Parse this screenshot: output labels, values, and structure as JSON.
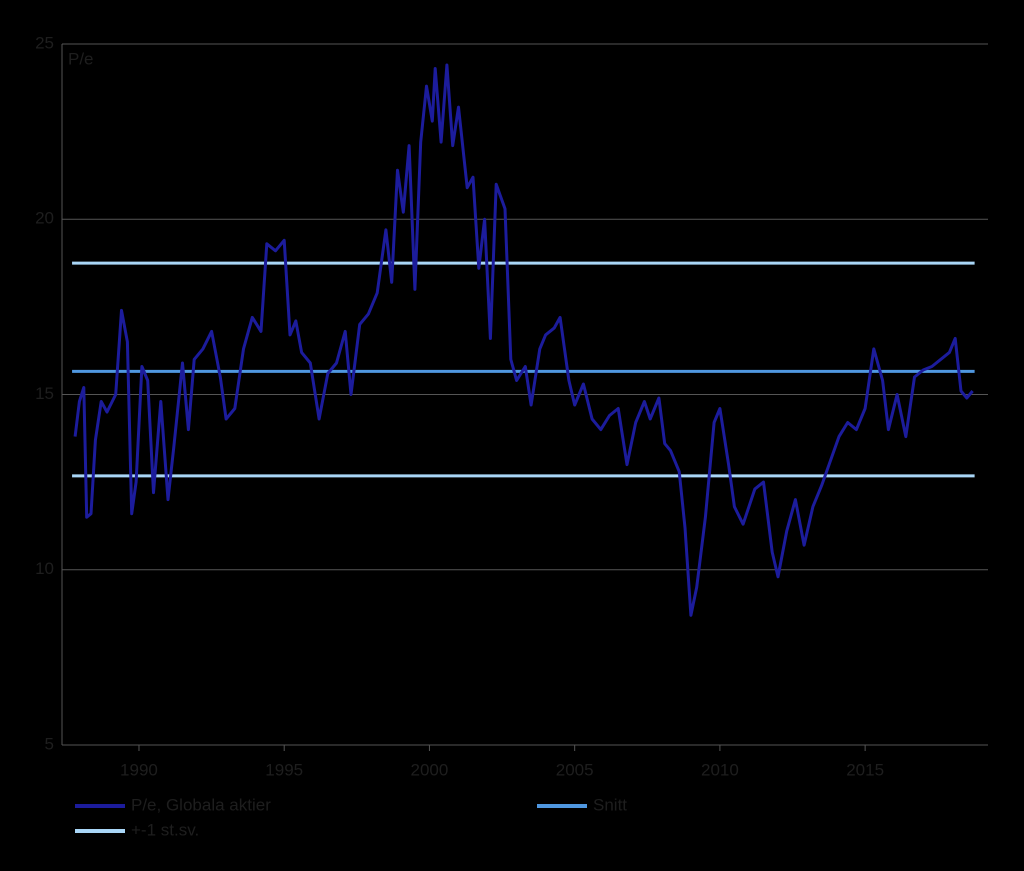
{
  "chart_data": {
    "type": "line",
    "y_label": "P/e",
    "xlim": [
      1987.35,
      2019.23
    ],
    "ylim": [
      5,
      25
    ],
    "yticks": [
      5,
      10,
      15,
      20,
      25
    ],
    "xticks": [
      1990,
      1995,
      2000,
      2005,
      2010,
      2015
    ],
    "grid": true,
    "legend": "bottom",
    "series": [
      {
        "name": "P/e, Globala aktier",
        "color": "#1c1c9c",
        "x": [
          1987.8,
          1987.95,
          1988.1,
          1988.2,
          1988.35,
          1988.5,
          1988.7,
          1988.9,
          1989.2,
          1989.4,
          1989.6,
          1989.75,
          1989.9,
          1990.1,
          1990.3,
          1990.5,
          1990.75,
          1991.0,
          1991.2,
          1991.5,
          1991.7,
          1991.9,
          1992.2,
          1992.5,
          1992.8,
          1993.0,
          1993.3,
          1993.6,
          1993.9,
          1994.2,
          1994.4,
          1994.7,
          1995.0,
          1995.2,
          1995.4,
          1995.6,
          1995.9,
          1996.2,
          1996.5,
          1996.8,
          1997.1,
          1997.3,
          1997.6,
          1997.9,
          1998.2,
          1998.5,
          1998.7,
          1998.9,
          1999.1,
          1999.3,
          1999.5,
          1999.7,
          1999.9,
          2000.1,
          2000.2,
          2000.4,
          2000.6,
          2000.8,
          2001.0,
          2001.3,
          2001.5,
          2001.7,
          2001.9,
          2002.1,
          2002.3,
          2002.6,
          2002.8,
          2003.0,
          2003.3,
          2003.5,
          2003.8,
          2004.0,
          2004.3,
          2004.5,
          2004.8,
          2005.0,
          2005.3,
          2005.6,
          2005.9,
          2006.2,
          2006.5,
          2006.8,
          2007.1,
          2007.4,
          2007.6,
          2007.9,
          2008.1,
          2008.3,
          2008.6,
          2008.8,
          2009.0,
          2009.2,
          2009.5,
          2009.8,
          2010.0,
          2010.3,
          2010.5,
          2010.8,
          2011.2,
          2011.5,
          2011.8,
          2012.0,
          2012.3,
          2012.6,
          2012.9,
          2013.2,
          2013.5,
          2013.8,
          2014.1,
          2014.4,
          2014.7,
          2015.0,
          2015.3,
          2015.6,
          2015.8,
          2016.1,
          2016.4,
          2016.7,
          2017.0,
          2017.3,
          2017.6,
          2017.9,
          2018.1,
          2018.3,
          2018.5,
          2018.7
        ],
        "values": [
          13.8,
          14.8,
          15.2,
          11.5,
          11.6,
          13.7,
          14.8,
          14.5,
          15.0,
          17.4,
          16.5,
          11.6,
          12.5,
          15.8,
          15.4,
          12.2,
          14.8,
          12.0,
          13.5,
          15.9,
          14.0,
          16.0,
          16.3,
          16.8,
          15.5,
          14.3,
          14.6,
          16.3,
          17.2,
          16.8,
          19.3,
          19.1,
          19.4,
          16.7,
          17.1,
          16.2,
          15.9,
          14.3,
          15.6,
          15.9,
          16.8,
          15.0,
          17.0,
          17.3,
          17.9,
          19.7,
          18.2,
          21.4,
          20.2,
          22.1,
          18.0,
          22.2,
          23.8,
          22.8,
          24.3,
          22.2,
          24.4,
          22.1,
          23.2,
          20.9,
          21.2,
          18.6,
          20.0,
          16.6,
          21.0,
          20.3,
          16.0,
          15.4,
          15.8,
          14.7,
          16.3,
          16.7,
          16.9,
          17.2,
          15.4,
          14.7,
          15.3,
          14.3,
          14.0,
          14.4,
          14.6,
          13.0,
          14.2,
          14.8,
          14.3,
          14.9,
          13.6,
          13.4,
          12.8,
          11.2,
          8.7,
          9.5,
          11.5,
          14.2,
          14.6,
          13.0,
          11.8,
          11.3,
          12.3,
          12.5,
          10.5,
          9.8,
          11.1,
          12.0,
          10.7,
          11.8,
          12.4,
          13.1,
          13.8,
          14.2,
          14.0,
          14.6,
          16.3,
          15.4,
          14.0,
          15.0,
          13.8,
          15.5,
          15.7,
          15.8,
          16.0,
          16.2,
          16.6,
          15.1,
          14.9,
          15.1
        ]
      }
    ],
    "hlines": [
      {
        "name": "Snitt",
        "color": "#4f97e0",
        "value": 15.66
      },
      {
        "name": "+-1 st.sv.",
        "color": "#a9d6f7",
        "values": [
          18.75,
          12.68
        ]
      }
    ]
  }
}
